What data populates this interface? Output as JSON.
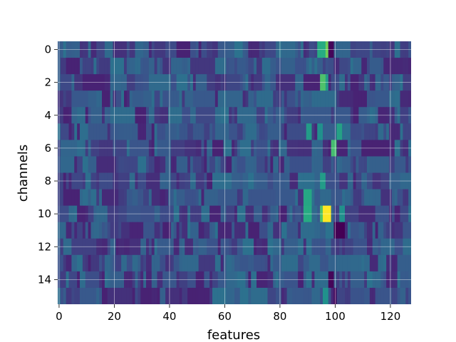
{
  "chart_data": {
    "type": "heatmap",
    "title": "",
    "xlabel": "features",
    "ylabel": "channels",
    "x_range": [
      -0.5,
      127.5
    ],
    "y_range": [
      -0.5,
      15.5
    ],
    "y_inverted": true,
    "x_ticks": [
      0,
      20,
      40,
      60,
      80,
      100,
      120
    ],
    "y_ticks": [
      0,
      2,
      4,
      6,
      8,
      10,
      12,
      14
    ],
    "grid": true,
    "colormap": "viridis",
    "value_range": [
      0,
      1
    ],
    "rows": 16,
    "cols": 128,
    "highlights": [
      {
        "channel": 0,
        "features": [
          94,
          95,
          96
        ],
        "value": 0.62
      },
      {
        "channel": 0,
        "features": [
          97
        ],
        "value": 0.78
      },
      {
        "channel": 0,
        "features": [
          98,
          99
        ],
        "value": 0.02
      },
      {
        "channel": 2,
        "features": [
          95,
          96
        ],
        "value": 0.72
      },
      {
        "channel": 2,
        "features": [
          97
        ],
        "value": 0.55
      },
      {
        "channel": 5,
        "features": [
          90,
          91
        ],
        "value": 0.55
      },
      {
        "channel": 5,
        "features": [
          94,
          95
        ],
        "value": 0.5
      },
      {
        "channel": 5,
        "features": [
          101,
          102
        ],
        "value": 0.58
      },
      {
        "channel": 6,
        "features": [
          99,
          100
        ],
        "value": 0.7
      },
      {
        "channel": 8,
        "features": [
          95,
          96
        ],
        "value": 0.55
      },
      {
        "channel": 9,
        "features": [
          89,
          90,
          91
        ],
        "value": 0.6
      },
      {
        "channel": 10,
        "features": [
          89,
          90,
          91
        ],
        "value": 0.62
      },
      {
        "channel": 10,
        "features": [
          95
        ],
        "value": 0.72
      },
      {
        "channel": 10,
        "features": [
          96,
          97,
          98
        ],
        "value": 1.0
      },
      {
        "channel": 10,
        "features": [
          102,
          103
        ],
        "value": 0.5
      },
      {
        "channel": 11,
        "features": [
          100,
          101,
          102,
          103
        ],
        "value": 0.0
      },
      {
        "channel": 14,
        "features": [
          98,
          99
        ],
        "value": 0.02
      },
      {
        "channel": 15,
        "features": [
          96,
          97
        ],
        "value": 0.5
      },
      {
        "channel": 15,
        "features": [
          100
        ],
        "value": 0.02
      }
    ]
  }
}
